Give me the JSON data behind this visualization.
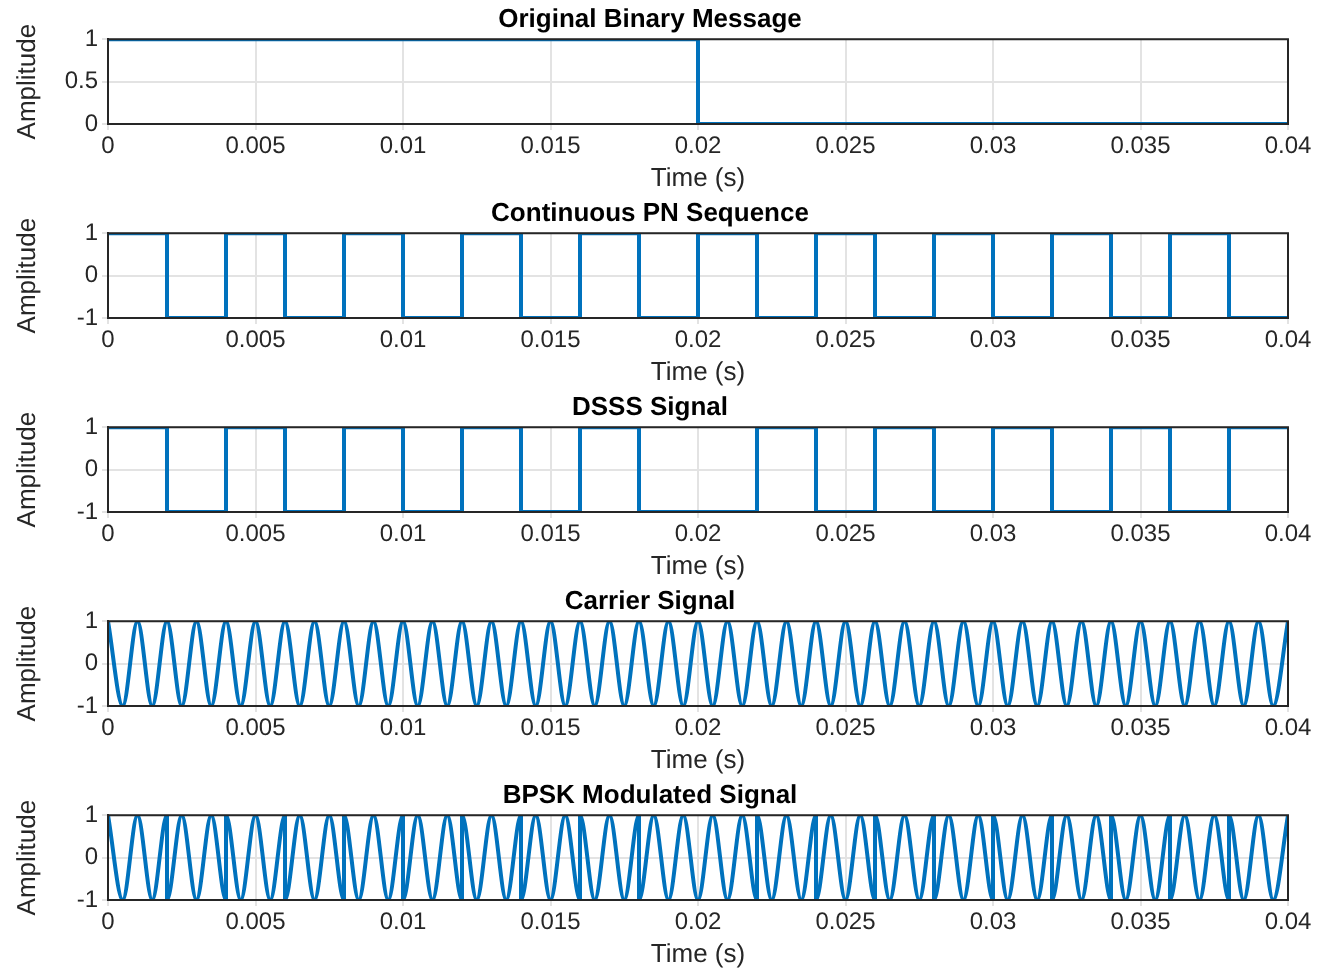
{
  "chart_data": [
    {
      "type": "line",
      "title": "Original Binary Message",
      "xlabel": "Time (s)",
      "ylabel": "Amplitude",
      "color": "#0072bd",
      "grid": true,
      "x": [
        0,
        0.02,
        0.02,
        0.04
      ],
      "values": [
        1,
        1,
        0,
        0
      ],
      "xlim": [
        0,
        0.04
      ],
      "xticks": [
        0,
        0.005,
        0.01,
        0.015,
        0.02,
        0.025,
        0.03,
        0.035,
        0.04
      ],
      "ylim": [
        0,
        1
      ],
      "yticks": [
        0,
        0.5,
        1
      ]
    },
    {
      "type": "line",
      "title": "Continuous PN Sequence",
      "xlabel": "Time (s)",
      "ylabel": "Amplitude",
      "color": "#0072bd",
      "grid": true,
      "x": [
        0,
        0.002,
        0.002,
        0.004,
        0.004,
        0.006,
        0.006,
        0.008,
        0.008,
        0.01,
        0.01,
        0.012,
        0.012,
        0.014,
        0.014,
        0.016,
        0.016,
        0.018,
        0.018,
        0.02,
        0.02,
        0.022,
        0.022,
        0.024,
        0.024,
        0.026,
        0.026,
        0.028,
        0.028,
        0.03,
        0.03,
        0.032,
        0.032,
        0.034,
        0.034,
        0.036,
        0.036,
        0.038,
        0.038,
        0.04
      ],
      "values": [
        1,
        1,
        -1,
        -1,
        1,
        1,
        -1,
        -1,
        1,
        1,
        -1,
        -1,
        1,
        1,
        -1,
        -1,
        1,
        1,
        -1,
        -1,
        1,
        1,
        -1,
        -1,
        1,
        1,
        -1,
        -1,
        1,
        1,
        -1,
        -1,
        1,
        1,
        -1,
        -1,
        1,
        1,
        -1,
        -1
      ],
      "xlim": [
        0,
        0.04
      ],
      "xticks": [
        0,
        0.005,
        0.01,
        0.015,
        0.02,
        0.025,
        0.03,
        0.035,
        0.04
      ],
      "ylim": [
        -1,
        1
      ],
      "yticks": [
        -1,
        0,
        1
      ]
    },
    {
      "type": "line",
      "title": "DSSS Signal",
      "xlabel": "Time (s)",
      "ylabel": "Amplitude",
      "color": "#0072bd",
      "grid": true,
      "x": [
        0,
        0.002,
        0.002,
        0.004,
        0.004,
        0.006,
        0.006,
        0.008,
        0.008,
        0.01,
        0.01,
        0.012,
        0.012,
        0.014,
        0.014,
        0.016,
        0.016,
        0.018,
        0.018,
        0.02,
        0.02,
        0.022,
        0.022,
        0.024,
        0.024,
        0.026,
        0.026,
        0.028,
        0.028,
        0.03,
        0.03,
        0.032,
        0.032,
        0.034,
        0.034,
        0.036,
        0.036,
        0.038,
        0.038,
        0.04
      ],
      "values": [
        1,
        1,
        -1,
        -1,
        1,
        1,
        -1,
        -1,
        1,
        1,
        -1,
        -1,
        1,
        1,
        -1,
        -1,
        1,
        1,
        -1,
        -1,
        -1,
        -1,
        1,
        1,
        -1,
        -1,
        1,
        1,
        -1,
        -1,
        1,
        1,
        -1,
        -1,
        1,
        1,
        -1,
        -1,
        1,
        1
      ],
      "xlim": [
        0,
        0.04
      ],
      "xticks": [
        0,
        0.005,
        0.01,
        0.015,
        0.02,
        0.025,
        0.03,
        0.035,
        0.04
      ],
      "ylim": [
        -1,
        1
      ],
      "yticks": [
        -1,
        0,
        1
      ]
    },
    {
      "type": "line",
      "title": "Carrier Signal",
      "xlabel": "Time (s)",
      "ylabel": "Amplitude",
      "color": "#0072bd",
      "grid": true,
      "x": [
        0,
        0.0005,
        0.001,
        0.0015,
        0.002,
        0.0025,
        0.003,
        0.0035,
        0.004,
        0.0045,
        0.005,
        0.0055,
        0.006,
        0.0065,
        0.007,
        0.0075,
        0.008,
        0.0085,
        0.009,
        0.0095,
        0.01,
        0.0105,
        0.011,
        0.0115,
        0.012,
        0.0125,
        0.013,
        0.0135,
        0.014,
        0.0145,
        0.015,
        0.0155,
        0.016,
        0.0165,
        0.017,
        0.0175,
        0.018,
        0.0185,
        0.019,
        0.0195,
        0.02,
        0.0205,
        0.021,
        0.0215,
        0.022,
        0.0225,
        0.023,
        0.0235,
        0.024,
        0.0245,
        0.025,
        0.0255,
        0.026,
        0.0265,
        0.027,
        0.0275,
        0.028,
        0.0285,
        0.029,
        0.0295,
        0.03,
        0.0305,
        0.031,
        0.0315,
        0.032,
        0.0325,
        0.033,
        0.0335,
        0.034,
        0.0345,
        0.035,
        0.0355,
        0.036,
        0.0365,
        0.037,
        0.0375,
        0.038,
        0.0385,
        0.039,
        0.0395,
        0.04
      ],
      "values": [
        1,
        -1,
        1,
        -1,
        1,
        -1,
        1,
        -1,
        1,
        -1,
        1,
        -1,
        1,
        -1,
        1,
        -1,
        1,
        -1,
        1,
        -1,
        1,
        -1,
        1,
        -1,
        1,
        -1,
        1,
        -1,
        1,
        -1,
        1,
        -1,
        1,
        -1,
        1,
        -1,
        1,
        -1,
        1,
        -1,
        1,
        -1,
        1,
        -1,
        1,
        -1,
        1,
        -1,
        1,
        -1,
        1,
        -1,
        1,
        -1,
        1,
        -1,
        1,
        -1,
        1,
        -1,
        1,
        -1,
        1,
        -1,
        1,
        -1,
        1,
        -1,
        1,
        -1,
        1,
        -1,
        1,
        -1,
        1,
        -1,
        1,
        -1,
        1,
        -1,
        1
      ],
      "xlim": [
        0,
        0.04
      ],
      "xticks": [
        0,
        0.005,
        0.01,
        0.015,
        0.02,
        0.025,
        0.03,
        0.035,
        0.04
      ],
      "ylim": [
        -1,
        1
      ],
      "yticks": [
        -1,
        0,
        1
      ]
    },
    {
      "type": "line",
      "title": "BPSK Modulated Signal",
      "xlabel": "Time (s)",
      "ylabel": "Amplitude",
      "color": "#0072bd",
      "grid": true,
      "x": [
        0,
        0.0005,
        0.001,
        0.0015,
        0.002,
        0.002,
        0.0025,
        0.003,
        0.0035,
        0.004,
        0.004,
        0.0045,
        0.005,
        0.0055,
        0.006,
        0.006,
        0.0065,
        0.007,
        0.0075,
        0.008,
        0.008,
        0.0085,
        0.009,
        0.0095,
        0.01,
        0.01,
        0.0105,
        0.011,
        0.0115,
        0.012,
        0.012,
        0.0125,
        0.013,
        0.0135,
        0.014,
        0.014,
        0.0145,
        0.015,
        0.0155,
        0.016,
        0.016,
        0.0165,
        0.017,
        0.0175,
        0.018,
        0.018,
        0.0185,
        0.019,
        0.0195,
        0.02,
        0.02,
        0.0205,
        0.021,
        0.0215,
        0.022,
        0.022,
        0.0225,
        0.023,
        0.0235,
        0.024,
        0.024,
        0.0245,
        0.025,
        0.0255,
        0.026,
        0.026,
        0.0265,
        0.027,
        0.0275,
        0.028,
        0.028,
        0.0285,
        0.029,
        0.0295,
        0.03,
        0.03,
        0.0305,
        0.031,
        0.0315,
        0.032,
        0.032,
        0.0325,
        0.033,
        0.0335,
        0.034,
        0.034,
        0.0345,
        0.035,
        0.0355,
        0.036,
        0.036,
        0.0365,
        0.037,
        0.0375,
        0.038,
        0.038,
        0.0385,
        0.039,
        0.0395,
        0.04
      ],
      "values": [
        1,
        -1,
        1,
        -1,
        1,
        -1,
        1,
        -1,
        1,
        -1,
        1,
        -1,
        1,
        -1,
        1,
        -1,
        1,
        -1,
        1,
        -1,
        1,
        -1,
        1,
        -1,
        1,
        -1,
        1,
        -1,
        1,
        -1,
        1,
        -1,
        1,
        -1,
        1,
        -1,
        1,
        -1,
        1,
        -1,
        1,
        -1,
        1,
        -1,
        1,
        -1,
        1,
        -1,
        1,
        -1,
        -1,
        1,
        -1,
        1,
        -1,
        1,
        -1,
        1,
        -1,
        1,
        -1,
        1,
        -1,
        1,
        -1,
        1,
        -1,
        1,
        -1,
        1,
        -1,
        1,
        -1,
        1,
        -1,
        1,
        -1,
        1,
        -1,
        1,
        -1,
        1,
        -1,
        1,
        -1,
        1,
        -1,
        1,
        -1,
        1,
        -1,
        1,
        -1,
        1,
        -1,
        1,
        -1,
        1,
        -1,
        1
      ],
      "xlim": [
        0,
        0.04
      ],
      "xticks": [
        0,
        0.005,
        0.01,
        0.015,
        0.02,
        0.025,
        0.03,
        0.035,
        0.04
      ],
      "ylim": [
        -1,
        1
      ],
      "yticks": [
        -1,
        0,
        1
      ]
    }
  ]
}
